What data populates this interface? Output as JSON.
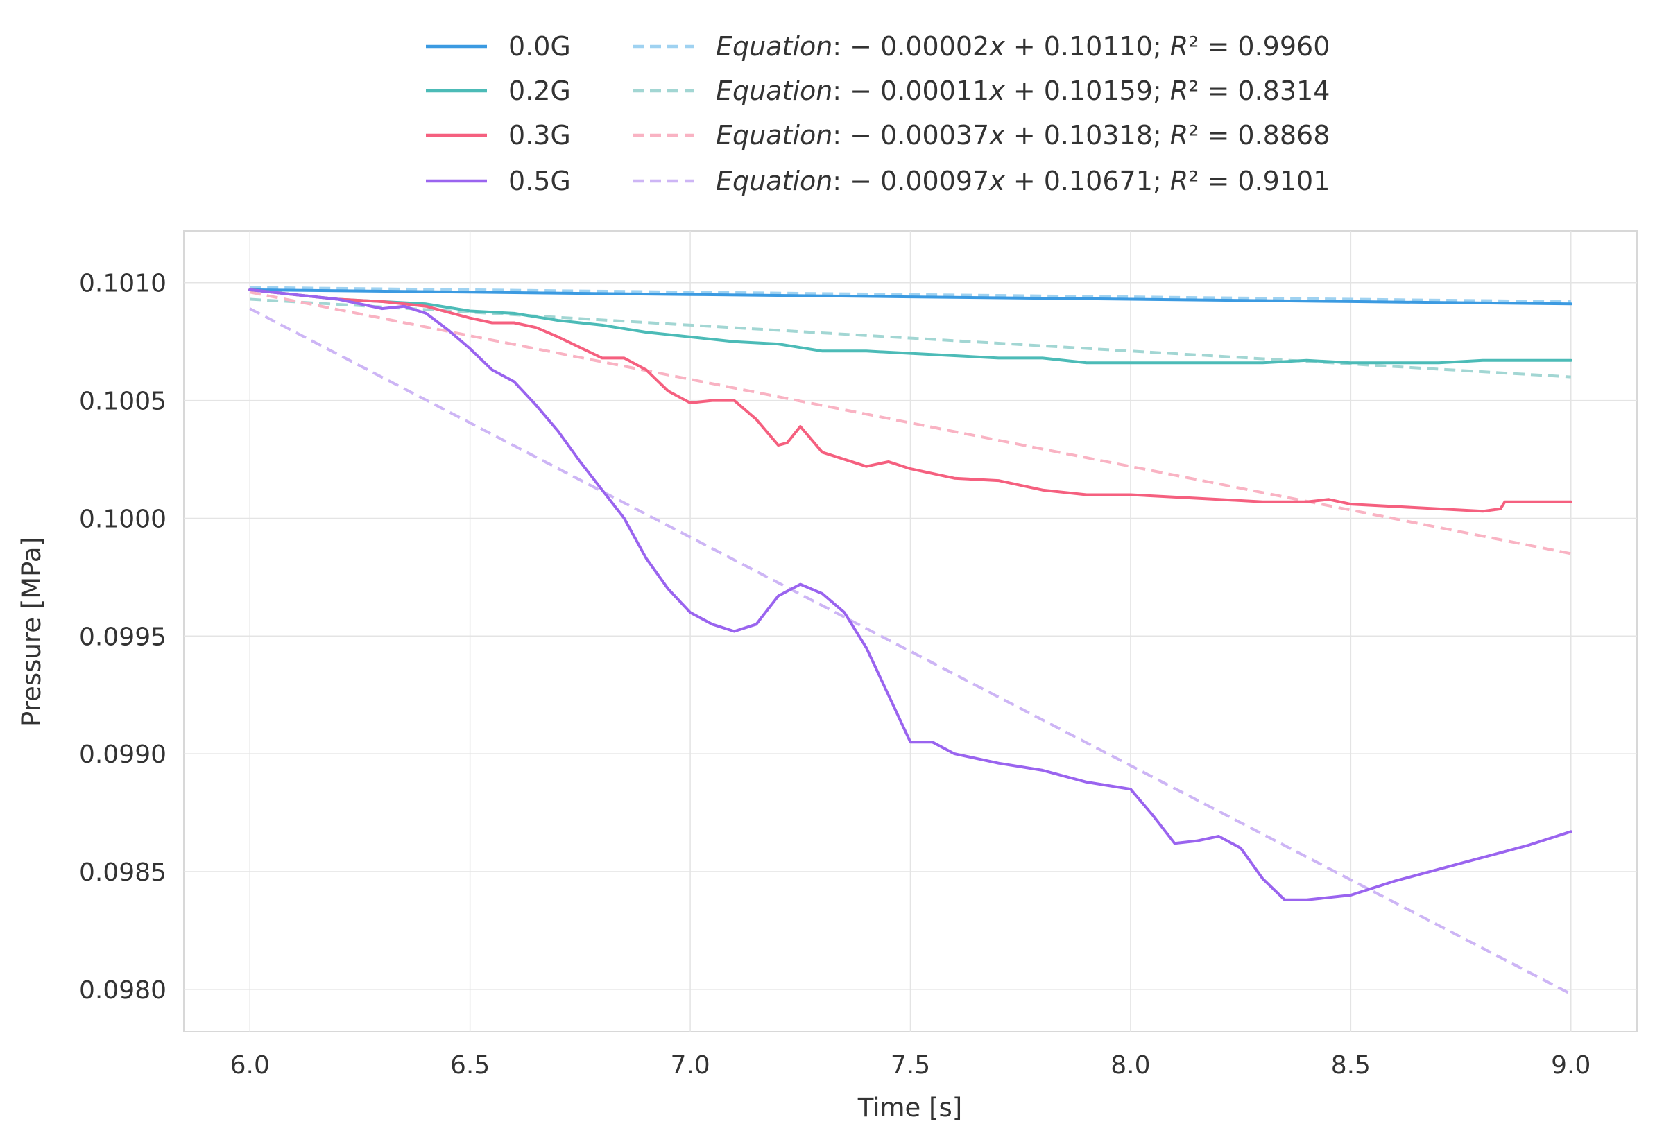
{
  "chart_data": {
    "type": "line",
    "xlabel": "Time [s]",
    "ylabel": "Pressure [MPa]",
    "xlim": [
      5.85,
      9.15
    ],
    "ylim": [
      0.09782,
      0.10122
    ],
    "xticks": [
      6.0,
      6.5,
      7.0,
      7.5,
      8.0,
      8.5,
      9.0
    ],
    "xtick_labels": [
      "6.0",
      "6.5",
      "7.0",
      "7.5",
      "8.0",
      "8.5",
      "9.0"
    ],
    "yticks": [
      0.101,
      0.1005,
      0.1,
      0.0995,
      0.099,
      0.0985,
      0.098
    ],
    "ytick_labels": [
      "0.1010",
      "0.1005",
      "0.1000",
      "0.0995",
      "0.0990",
      "0.0985",
      "0.0980"
    ],
    "grid": true,
    "legend_position": "top-center, above plot",
    "series": [
      {
        "name": "0.0G",
        "color": "#3b9ae1",
        "x": [
          6.0,
          6.5,
          7.0,
          7.5,
          8.0,
          8.5,
          9.0
        ],
        "y": [
          0.10097,
          0.10096,
          0.10095,
          0.10094,
          0.10093,
          0.10092,
          0.10091
        ]
      },
      {
        "name": "0.2G",
        "color": "#4cbbb7",
        "x": [
          6.0,
          6.1,
          6.2,
          6.3,
          6.4,
          6.5,
          6.6,
          6.7,
          6.8,
          6.9,
          7.0,
          7.1,
          7.2,
          7.3,
          7.4,
          7.5,
          7.6,
          7.7,
          7.8,
          7.9,
          8.0,
          8.1,
          8.2,
          8.3,
          8.4,
          8.5,
          8.6,
          8.7,
          8.8,
          8.9,
          9.0
        ],
        "y": [
          0.10097,
          0.10095,
          0.10093,
          0.10092,
          0.10091,
          0.10088,
          0.10087,
          0.10084,
          0.10082,
          0.10079,
          0.10077,
          0.10075,
          0.10074,
          0.10071,
          0.10071,
          0.1007,
          0.10069,
          0.10068,
          0.10068,
          0.10066,
          0.10066,
          0.10066,
          0.10066,
          0.10066,
          0.10067,
          0.10066,
          0.10066,
          0.10066,
          0.10067,
          0.10067,
          0.10067
        ]
      },
      {
        "name": "0.3G",
        "color": "#f5607f",
        "x": [
          6.0,
          6.1,
          6.2,
          6.3,
          6.35,
          6.4,
          6.5,
          6.55,
          6.6,
          6.65,
          6.7,
          6.8,
          6.85,
          6.9,
          6.95,
          7.0,
          7.05,
          7.1,
          7.15,
          7.2,
          7.22,
          7.25,
          7.3,
          7.4,
          7.45,
          7.5,
          7.6,
          7.7,
          7.8,
          7.9,
          8.0,
          8.1,
          8.2,
          8.3,
          8.4,
          8.45,
          8.5,
          8.6,
          8.7,
          8.8,
          8.84,
          8.85,
          8.9,
          9.0
        ],
        "y": [
          0.10097,
          0.10095,
          0.10093,
          0.10092,
          0.10091,
          0.1009,
          0.10085,
          0.10083,
          0.10083,
          0.10081,
          0.10077,
          0.10068,
          0.10068,
          0.10063,
          0.10054,
          0.10049,
          0.1005,
          0.1005,
          0.10042,
          0.10031,
          0.10032,
          0.10039,
          0.10028,
          0.10022,
          0.10024,
          0.10021,
          0.10017,
          0.10016,
          0.10012,
          0.1001,
          0.1001,
          0.10009,
          0.10008,
          0.10007,
          0.10007,
          0.10008,
          0.10006,
          0.10005,
          0.10004,
          0.10003,
          0.10004,
          0.10007,
          0.10007,
          0.10007
        ]
      },
      {
        "name": "0.5G",
        "color": "#9a64ef",
        "x": [
          6.0,
          6.1,
          6.2,
          6.3,
          6.35,
          6.4,
          6.45,
          6.5,
          6.55,
          6.6,
          6.65,
          6.7,
          6.75,
          6.8,
          6.85,
          6.9,
          6.95,
          7.0,
          7.05,
          7.1,
          7.15,
          7.2,
          7.25,
          7.3,
          7.35,
          7.4,
          7.45,
          7.5,
          7.55,
          7.6,
          7.7,
          7.8,
          7.9,
          8.0,
          8.05,
          8.1,
          8.15,
          8.2,
          8.25,
          8.3,
          8.35,
          8.4,
          8.5,
          8.6,
          8.7,
          8.8,
          8.9,
          9.0
        ],
        "y": [
          0.10097,
          0.10095,
          0.10093,
          0.10089,
          0.1009,
          0.10087,
          0.1008,
          0.10072,
          0.10063,
          0.10058,
          0.10048,
          0.10037,
          0.10024,
          0.10012,
          0.1,
          0.09983,
          0.0997,
          0.0996,
          0.09955,
          0.09952,
          0.09955,
          0.09967,
          0.09972,
          0.09968,
          0.0996,
          0.09945,
          0.09925,
          0.09905,
          0.09905,
          0.099,
          0.09896,
          0.09893,
          0.09888,
          0.09885,
          0.09874,
          0.09862,
          0.09863,
          0.09865,
          0.0986,
          0.09847,
          0.09838,
          0.09838,
          0.0984,
          0.09846,
          0.09851,
          0.09856,
          0.09861,
          0.09867
        ]
      },
      {
        "name": "Equation: −0.00002x + 0.10110; R² = 0.9960",
        "color": "#9fd2f1",
        "dashed": true,
        "x": [
          6.0,
          9.0
        ],
        "y": [
          0.10098,
          0.10092
        ]
      },
      {
        "name": "Equation: −0.00011x + 0.10159; R² = 0.8314",
        "color": "#a2d6d3",
        "dashed": true,
        "x": [
          6.0,
          9.0
        ],
        "y": [
          0.10093,
          0.1006
        ]
      },
      {
        "name": "Equation: −0.00037x + 0.10318; R² = 0.8868",
        "color": "#f9b3c3",
        "dashed": true,
        "x": [
          6.0,
          9.0
        ],
        "y": [
          0.10096,
          0.09985
        ]
      },
      {
        "name": "Equation: −0.00097x + 0.10671; R² = 0.9101",
        "color": "#cdb5f5",
        "dashed": true,
        "x": [
          6.0,
          9.0
        ],
        "y": [
          0.10089,
          0.09798
        ]
      }
    ],
    "legend": {
      "left": [
        "0.0G",
        "0.2G",
        "0.3G",
        "0.5G"
      ],
      "right": [
        {
          "label": "Equation",
          "rest": ": − 0.00002",
          "x": "x",
          "tail": " + 0.10110; ",
          "r": "R",
          "r_tail": "² = 0.9960"
        },
        {
          "label": "Equation",
          "rest": ": − 0.00011",
          "x": "x",
          "tail": " + 0.10159; ",
          "r": "R",
          "r_tail": "² = 0.8314"
        },
        {
          "label": "Equation",
          "rest": ": − 0.00037",
          "x": "x",
          "tail": " + 0.10318; ",
          "r": "R",
          "r_tail": "² = 0.8868"
        },
        {
          "label": "Equation",
          "rest": ": − 0.00097",
          "x": "x",
          "tail": " + 0.10671; ",
          "r": "R",
          "r_tail": "² = 0.9101"
        }
      ]
    }
  }
}
